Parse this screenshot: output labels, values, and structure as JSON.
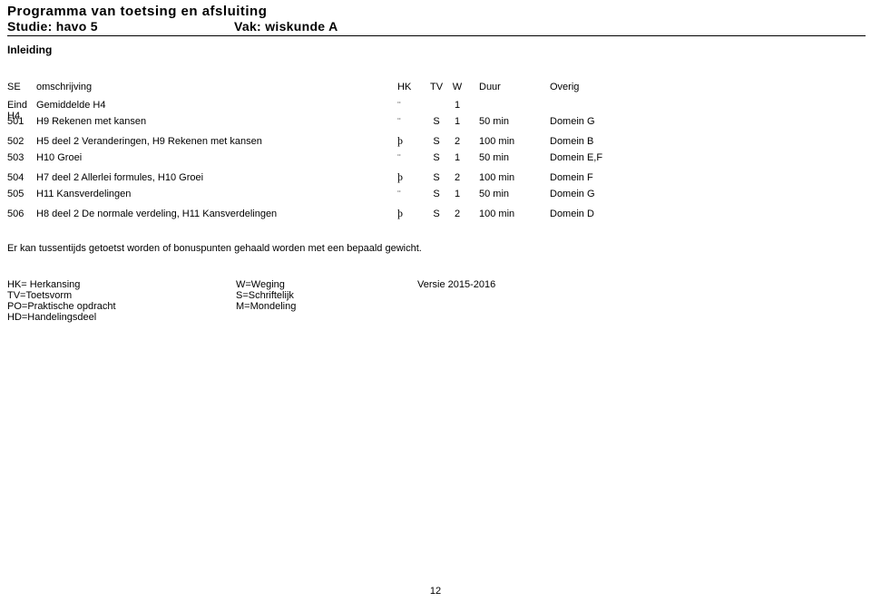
{
  "header": {
    "title": "Programma van toetsing en afsluiting",
    "study_prefix": "Studie: ",
    "study": "havo 5",
    "subject_prefix": "Vak: ",
    "subject": "wiskunde A",
    "section": "Inleiding"
  },
  "columns": {
    "code": "SE",
    "desc": "omschrijving",
    "hk": "HK",
    "tv": "TV",
    "w": "W",
    "dur": "Duur",
    "over": "Overig"
  },
  "eind_row": {
    "label": "Eind H4",
    "desc": "Gemiddelde H4",
    "hk_char": "¨",
    "w": "1"
  },
  "rows": [
    {
      "code": "501",
      "desc": "H9 Rekenen met kansen",
      "hk_char": "¨",
      "tv": "S",
      "w": "1",
      "dur": "50 min",
      "over": "Domein G"
    },
    {
      "code": "502",
      "desc": "H5 deel 2 Veranderingen, H9 Rekenen met kansen",
      "hk_char": "þ",
      "tv": "S",
      "w": "2",
      "dur": "100 min",
      "over": "Domein B"
    },
    {
      "code": "503",
      "desc": "H10 Groei",
      "hk_char": "¨",
      "tv": "S",
      "w": "1",
      "dur": "50 min",
      "over": "Domein E,F"
    },
    {
      "code": "504",
      "desc": "H7 deel 2 Allerlei formules, H10 Groei",
      "hk_char": "þ",
      "tv": "S",
      "w": "2",
      "dur": "100 min",
      "over": "Domein F"
    },
    {
      "code": "505",
      "desc": "H11 Kansverdelingen",
      "hk_char": "¨",
      "tv": "S",
      "w": "1",
      "dur": "50 min",
      "over": "Domein G"
    },
    {
      "code": "506",
      "desc": "H8 deel 2 De normale verdeling, H11 Kansverdelingen",
      "hk_char": "þ",
      "tv": "S",
      "w": "2",
      "dur": "100 min",
      "over": "Domein D"
    }
  ],
  "note": "Er kan tussentijds getoetst worden of bonuspunten gehaald worden met een bepaald gewicht.",
  "legend": {
    "col1": [
      "HK= Herkansing",
      "TV=Toetsvorm",
      "PO=Praktische opdracht",
      "HD=Handelingsdeel"
    ],
    "col2": [
      "W=Weging",
      "",
      "S=Schriftelijk",
      "M=Mondeling"
    ],
    "col3": [
      "Versie 2015-2016"
    ]
  },
  "page_number": "12"
}
